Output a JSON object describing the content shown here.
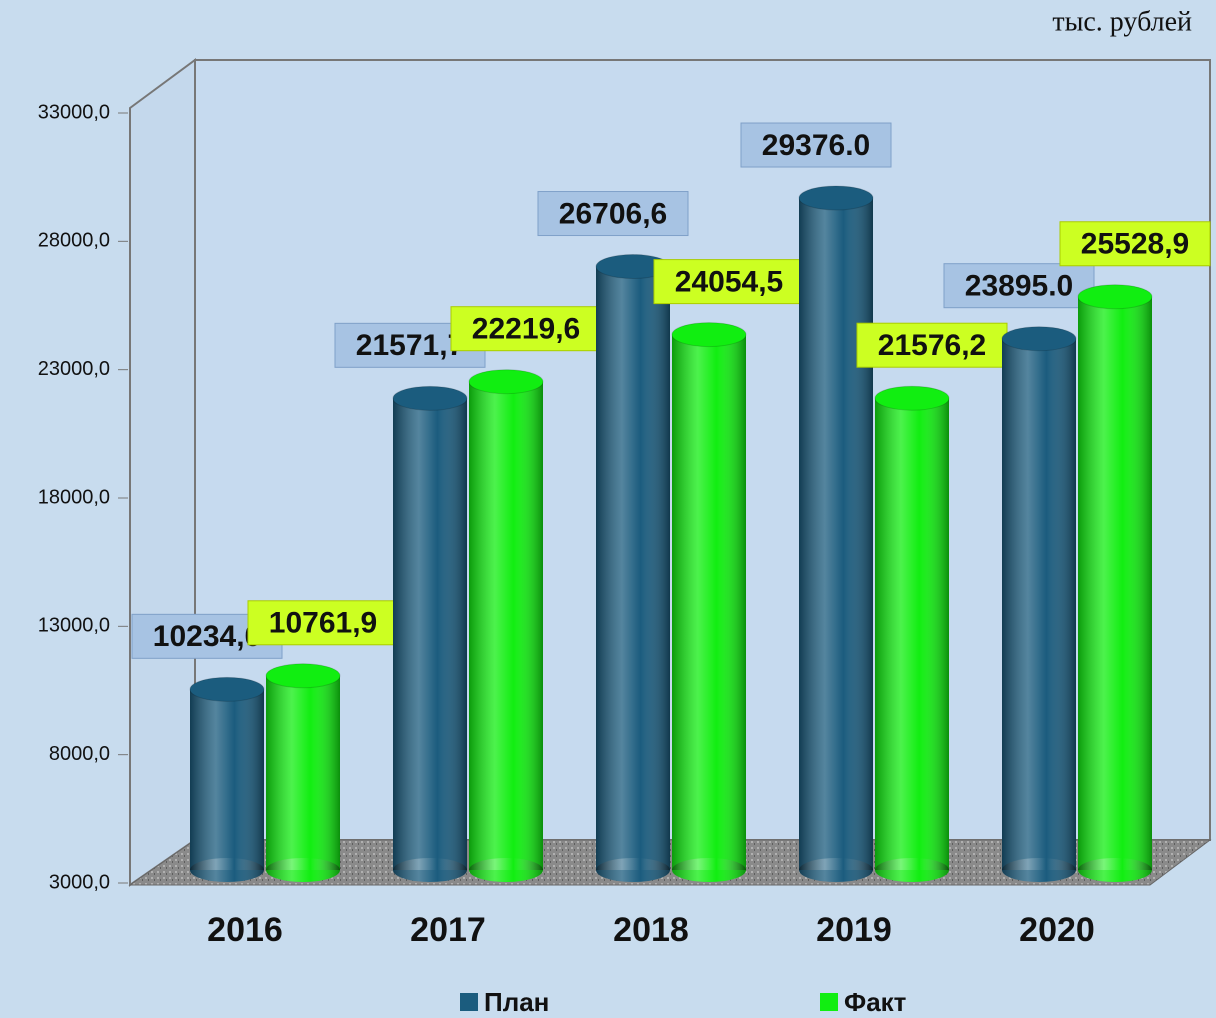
{
  "chart_data": {
    "type": "bar3d",
    "unit_label": "тыс. рублей",
    "categories": [
      "2016",
      "2017",
      "2018",
      "2019",
      "2020"
    ],
    "series": [
      {
        "name": "План",
        "color": "#1b5c7e",
        "values": [
          10234.0,
          21571.7,
          26706.6,
          29376.0,
          23895.0
        ],
        "value_labels": [
          "10234,0",
          "21571,7",
          "26706,6",
          "29376.0",
          "23895.0"
        ]
      },
      {
        "name": "Факт",
        "color": "#11ee11",
        "values": [
          10761.9,
          22219.6,
          24054.5,
          21576.2,
          25528.9
        ],
        "value_labels": [
          "10761,9",
          "22219,6",
          "24054,5",
          "21576,2",
          "25528,9"
        ]
      }
    ],
    "ylim": [
      3000,
      33000
    ],
    "yticks": [
      {
        "value": 3000,
        "label": "3000,0"
      },
      {
        "value": 8000,
        "label": "8000,0"
      },
      {
        "value": 13000,
        "label": "13000,0"
      },
      {
        "value": 18000,
        "label": "18000,0"
      },
      {
        "value": 23000,
        "label": "23000,0"
      },
      {
        "value": 28000,
        "label": "28000,0"
      },
      {
        "value": 33000,
        "label": "33000,0"
      }
    ],
    "legend": "bottom"
  }
}
